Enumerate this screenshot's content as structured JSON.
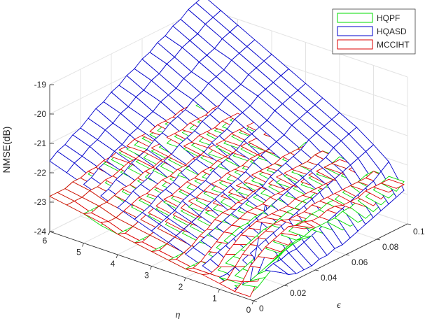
{
  "chart_data": {
    "type": "surface",
    "title": "",
    "zlabel": "NMSE(dB)",
    "xlabel": "η",
    "ylabel": "ϵ",
    "eta_ticks": [
      "0",
      "1",
      "2",
      "3",
      "4",
      "5",
      "6"
    ],
    "eps_ticks": [
      "0",
      "0.02",
      "0.04",
      "0.06",
      "0.08",
      "0.1"
    ],
    "z_ticks": [
      "-24",
      "-23",
      "-22",
      "-21",
      "-20",
      "-19"
    ],
    "eta_range": [
      0,
      6
    ],
    "eps_range": [
      0,
      0.1
    ],
    "zlim": [
      -24,
      -19
    ],
    "grid": true,
    "legend_position": "top-right",
    "eta": [
      0.1,
      0.55,
      1.0,
      1.5,
      2.0,
      2.5,
      3.0,
      3.5,
      4.0,
      4.5,
      5.0,
      5.5,
      6.0
    ],
    "eps": [
      0,
      0.005,
      0.01,
      0.015,
      0.02,
      0.025,
      0.03,
      0.035,
      0.04,
      0.045,
      0.05,
      0.055,
      0.06,
      0.065,
      0.07,
      0.075,
      0.08,
      0.085,
      0.09,
      0.095,
      0.1
    ],
    "series": [
      {
        "name": "HQPF",
        "color": "#00dd00",
        "values": [
          [
            -23.8,
            -23.7,
            -23.5,
            -23.3,
            -23.0,
            -22.8,
            -22.8,
            -22.8,
            -22.9,
            -23.0,
            -23.1,
            -23.1,
            -23.2,
            -23.2,
            -23.2,
            -23.2,
            -23.1,
            -23.0,
            -22.9,
            -22.8,
            -22.6
          ],
          [
            -23.7,
            -23.8,
            -23.8,
            -23.7,
            -23.6,
            -23.5,
            -23.4,
            -23.3,
            -23.2,
            -23.2,
            -23.1,
            -23.1,
            -23.1,
            -23.1,
            -23.0,
            -23.0,
            -22.9,
            -22.9,
            -22.8,
            -22.7,
            -22.6
          ],
          [
            -23.6,
            -23.8,
            -23.8,
            -23.7,
            -23.6,
            -23.5,
            -23.4,
            -23.3,
            -23.2,
            -23.2,
            -23.1,
            -23.1,
            -23.0,
            -23.0,
            -22.9,
            -22.9,
            -22.8,
            -22.7,
            -22.7,
            -22.6,
            -22.6
          ],
          [
            -23.7,
            -23.8,
            -23.8,
            -23.7,
            -23.6,
            -23.5,
            -23.4,
            -23.3,
            -23.2,
            -23.2,
            -23.1,
            -23.0,
            -23.0,
            -22.9,
            -22.9,
            -22.8,
            -22.8,
            -22.7,
            -22.7,
            -22.6,
            -22.6
          ],
          [
            -23.7,
            -23.7,
            -23.7,
            -23.6,
            -23.5,
            -23.4,
            -23.3,
            -23.2,
            -23.2,
            -23.1,
            -23.1,
            -23.0,
            -22.9,
            -22.9,
            -22.8,
            -22.8,
            -22.7,
            -22.7,
            -22.6,
            -22.6,
            -22.5
          ],
          [
            -23.6,
            -23.6,
            -23.6,
            -23.5,
            -23.5,
            -23.4,
            -23.3,
            -23.2,
            -23.1,
            -23.1,
            -23.0,
            -22.9,
            -22.9,
            -22.8,
            -22.8,
            -22.7,
            -22.7,
            -22.6,
            -22.6,
            -22.5,
            -22.5
          ],
          [
            -23.5,
            -23.5,
            -23.5,
            -23.4,
            -23.4,
            -23.3,
            -23.2,
            -23.1,
            -23.1,
            -23.0,
            -22.9,
            -22.9,
            -22.8,
            -22.8,
            -22.7,
            -22.7,
            -22.6,
            -22.6,
            -22.5,
            -22.5,
            -22.4
          ],
          [
            -23.4,
            -23.4,
            -23.4,
            -23.3,
            -23.3,
            -23.2,
            -23.1,
            -23.1,
            -23.0,
            -22.9,
            -22.9,
            -22.8,
            -22.8,
            -22.7,
            -22.7,
            -22.6,
            -22.6,
            -22.5,
            -22.5,
            -22.4,
            -22.4
          ],
          [
            -23.3,
            -23.3,
            -23.3,
            -23.2,
            -23.2,
            -23.1,
            -23.0,
            -23.0,
            -22.9,
            -22.9,
            -22.8,
            -22.8,
            -22.7,
            -22.7,
            -22.6,
            -22.6,
            -22.5,
            -22.5,
            -22.4,
            -22.4,
            -22.4
          ],
          [
            -23.2,
            -23.2,
            -23.2,
            -23.1,
            -23.1,
            -23.0,
            -23.0,
            -22.9,
            -22.9,
            -22.8,
            -22.8,
            -22.7,
            -22.7,
            -22.6,
            -22.6,
            -22.5,
            -22.5,
            -22.4,
            -22.4,
            -22.4,
            -22.3
          ],
          [
            -23.0,
            -23.0,
            -23.0,
            -23.0,
            -22.9,
            -22.9,
            -22.8,
            -22.8,
            -22.8,
            -22.7,
            -22.7,
            -22.6,
            -22.6,
            -22.5,
            -22.5,
            -22.5,
            -22.4,
            -22.4,
            -22.4,
            -22.3,
            -22.3
          ],
          [
            -22.9,
            -22.9,
            -22.9,
            -22.8,
            -22.8,
            -22.8,
            -22.7,
            -22.7,
            -22.7,
            -22.6,
            -22.6,
            -22.5,
            -22.5,
            -22.5,
            -22.4,
            -22.4,
            -22.4,
            -22.3,
            -22.3,
            -22.3,
            -22.2
          ],
          [
            -22.8,
            -22.8,
            -22.8,
            -22.7,
            -22.7,
            -22.7,
            -22.6,
            -22.6,
            -22.6,
            -22.5,
            -22.5,
            -22.5,
            -22.4,
            -22.4,
            -22.4,
            -22.3,
            -22.3,
            -22.3,
            -22.2,
            -22.2,
            -22.2
          ]
        ]
      },
      {
        "name": "HQASD",
        "color": "#0000cc",
        "values": [
          [
            -23.8,
            -22.4,
            -21.0,
            -22.2,
            -23.6,
            -23.8,
            -23.9,
            -23.9,
            -23.9,
            -23.8,
            -23.8,
            -23.7,
            -23.7,
            -23.6,
            -23.5,
            -23.4,
            -23.3,
            -23.2,
            -23.1,
            -23.0,
            -22.9
          ],
          [
            -23.8,
            -23.8,
            -23.8,
            -23.7,
            -23.7,
            -23.6,
            -23.6,
            -23.5,
            -23.5,
            -23.4,
            -23.3,
            -23.2,
            -23.1,
            -23.0,
            -22.9,
            -22.8,
            -22.7,
            -22.6,
            -22.5,
            -22.3,
            -22.1
          ],
          [
            -23.6,
            -23.6,
            -23.5,
            -23.4,
            -23.3,
            -23.2,
            -23.1,
            -23.0,
            -22.9,
            -22.8,
            -22.7,
            -22.6,
            -22.5,
            -22.4,
            -22.3,
            -22.2,
            -22.1,
            -22.0,
            -21.9,
            -21.8,
            -21.7
          ],
          [
            -23.4,
            -23.3,
            -23.2,
            -23.1,
            -23.0,
            -22.9,
            -22.8,
            -22.7,
            -22.6,
            -22.5,
            -22.4,
            -22.3,
            -22.2,
            -22.1,
            -22.0,
            -21.9,
            -21.8,
            -21.6,
            -21.5,
            -21.4,
            -21.3
          ],
          [
            -23.2,
            -23.1,
            -23.0,
            -22.9,
            -22.8,
            -22.7,
            -22.6,
            -22.5,
            -22.4,
            -22.3,
            -22.2,
            -22.0,
            -21.9,
            -21.8,
            -21.7,
            -21.6,
            -21.4,
            -21.3,
            -21.2,
            -21.1,
            -21.0
          ],
          [
            -23.0,
            -22.9,
            -22.8,
            -22.7,
            -22.6,
            -22.4,
            -22.3,
            -22.2,
            -22.1,
            -22.0,
            -21.9,
            -21.7,
            -21.6,
            -21.5,
            -21.4,
            -21.3,
            -21.1,
            -21.0,
            -20.9,
            -20.8,
            -20.7
          ],
          [
            -22.8,
            -22.7,
            -22.6,
            -22.5,
            -22.3,
            -22.2,
            -22.1,
            -22.0,
            -21.8,
            -21.7,
            -21.6,
            -21.5,
            -21.3,
            -21.2,
            -21.1,
            -21.0,
            -20.8,
            -20.7,
            -20.6,
            -20.5,
            -20.4
          ],
          [
            -22.6,
            -22.5,
            -22.4,
            -22.2,
            -22.1,
            -22.0,
            -21.8,
            -21.7,
            -21.6,
            -21.5,
            -21.3,
            -21.2,
            -21.1,
            -20.9,
            -20.8,
            -20.7,
            -20.5,
            -20.4,
            -20.3,
            -20.2,
            -20.1
          ],
          [
            -22.4,
            -22.3,
            -22.1,
            -22.0,
            -21.9,
            -21.7,
            -21.6,
            -21.5,
            -21.3,
            -21.2,
            -21.1,
            -20.9,
            -20.8,
            -20.7,
            -20.5,
            -20.4,
            -20.3,
            -20.1,
            -20.0,
            -19.9,
            -19.8
          ],
          [
            -22.2,
            -22.1,
            -21.9,
            -21.8,
            -21.6,
            -21.5,
            -21.4,
            -21.2,
            -21.1,
            -20.9,
            -20.8,
            -20.7,
            -20.5,
            -20.4,
            -20.2,
            -20.1,
            -20.0,
            -19.8,
            -19.7,
            -19.6,
            -19.5
          ],
          [
            -22.0,
            -21.9,
            -21.7,
            -21.6,
            -21.4,
            -21.3,
            -21.1,
            -21.0,
            -20.8,
            -20.7,
            -20.5,
            -20.4,
            -20.3,
            -20.1,
            -20.0,
            -19.8,
            -19.7,
            -19.6,
            -19.4,
            -19.3,
            -19.2
          ],
          [
            -21.8,
            -21.6,
            -21.5,
            -21.3,
            -21.2,
            -21.0,
            -20.9,
            -20.7,
            -20.6,
            -20.4,
            -20.3,
            -20.1,
            -20.0,
            -19.8,
            -19.7,
            -19.5,
            -19.4,
            -19.3,
            -19.1,
            -19.0,
            -18.9
          ],
          [
            -21.6,
            -21.4,
            -21.3,
            -21.1,
            -21.0,
            -20.8,
            -20.6,
            -20.5,
            -20.3,
            -20.2,
            -20.0,
            -19.9,
            -19.7,
            -19.6,
            -19.4,
            -19.3,
            -19.1,
            -19.0,
            -18.8,
            -18.7,
            -18.6
          ]
        ]
      },
      {
        "name": "MCCIHT",
        "color": "#dd0000",
        "values": [
          [
            -23.9,
            -23.5,
            -23.2,
            -23.0,
            -22.9,
            -22.8,
            -22.6,
            -22.5,
            -22.6,
            -22.8,
            -22.9,
            -22.8,
            -22.7,
            -22.7,
            -22.8,
            -22.8,
            -22.9,
            -22.8,
            -22.7,
            -22.7,
            -22.7
          ],
          [
            -23.9,
            -23.7,
            -23.3,
            -23.1,
            -22.9,
            -22.8,
            -22.7,
            -22.6,
            -22.7,
            -22.7,
            -22.8,
            -22.8,
            -22.7,
            -22.7,
            -22.8,
            -22.8,
            -22.8,
            -22.7,
            -22.7,
            -22.7,
            -22.7
          ],
          [
            -23.8,
            -23.8,
            -23.5,
            -23.2,
            -23.0,
            -22.9,
            -22.8,
            -22.7,
            -22.7,
            -22.8,
            -22.8,
            -22.8,
            -22.7,
            -22.7,
            -22.7,
            -22.7,
            -22.7,
            -22.7,
            -22.7,
            -22.7,
            -22.6
          ],
          [
            -23.7,
            -23.8,
            -23.7,
            -23.4,
            -23.2,
            -23.0,
            -22.9,
            -22.8,
            -22.8,
            -22.8,
            -22.8,
            -22.8,
            -22.7,
            -22.7,
            -22.7,
            -22.7,
            -22.7,
            -22.7,
            -22.6,
            -22.6,
            -22.6
          ],
          [
            -23.7,
            -23.8,
            -23.7,
            -23.5,
            -23.3,
            -23.1,
            -23.0,
            -22.9,
            -22.8,
            -22.8,
            -22.8,
            -22.7,
            -22.7,
            -22.7,
            -22.7,
            -22.7,
            -22.6,
            -22.6,
            -22.6,
            -22.6,
            -22.6
          ],
          [
            -23.6,
            -23.7,
            -23.6,
            -23.5,
            -23.3,
            -23.2,
            -23.0,
            -22.9,
            -22.9,
            -22.8,
            -22.8,
            -22.7,
            -22.7,
            -22.7,
            -22.6,
            -22.6,
            -22.6,
            -22.6,
            -22.6,
            -22.5,
            -22.5
          ],
          [
            -23.5,
            -23.6,
            -23.5,
            -23.4,
            -23.3,
            -23.2,
            -23.1,
            -23.0,
            -22.9,
            -22.8,
            -22.8,
            -22.7,
            -22.7,
            -22.6,
            -22.6,
            -22.6,
            -22.6,
            -22.5,
            -22.5,
            -22.5,
            -22.5
          ],
          [
            -23.4,
            -23.5,
            -23.4,
            -23.3,
            -23.2,
            -23.1,
            -23.0,
            -22.9,
            -22.9,
            -22.8,
            -22.7,
            -22.7,
            -22.6,
            -22.6,
            -22.6,
            -22.5,
            -22.5,
            -22.5,
            -22.5,
            -22.4,
            -22.4
          ],
          [
            -23.3,
            -23.4,
            -23.3,
            -23.2,
            -23.1,
            -23.0,
            -22.9,
            -22.9,
            -22.8,
            -22.7,
            -22.7,
            -22.6,
            -22.6,
            -22.5,
            -22.5,
            -22.5,
            -22.4,
            -22.4,
            -22.4,
            -22.4,
            -22.3
          ],
          [
            -23.1,
            -23.2,
            -23.2,
            -23.1,
            -23.0,
            -22.9,
            -22.9,
            -22.8,
            -22.7,
            -22.7,
            -22.6,
            -22.6,
            -22.5,
            -22.5,
            -22.4,
            -22.4,
            -22.4,
            -22.3,
            -22.3,
            -22.3,
            -22.3
          ],
          [
            -23.0,
            -23.1,
            -23.0,
            -23.0,
            -22.9,
            -22.8,
            -22.8,
            -22.7,
            -22.6,
            -22.6,
            -22.5,
            -22.5,
            -22.4,
            -22.4,
            -22.4,
            -22.3,
            -22.3,
            -22.3,
            -22.2,
            -22.2,
            -22.2
          ],
          [
            -22.9,
            -22.9,
            -22.9,
            -22.8,
            -22.8,
            -22.7,
            -22.7,
            -22.6,
            -22.5,
            -22.5,
            -22.4,
            -22.4,
            -22.4,
            -22.3,
            -22.3,
            -22.3,
            -22.2,
            -22.2,
            -22.2,
            -22.1,
            -22.1
          ],
          [
            -22.8,
            -22.8,
            -22.8,
            -22.7,
            -22.7,
            -22.6,
            -22.6,
            -22.5,
            -22.5,
            -22.4,
            -22.4,
            -22.3,
            -22.3,
            -22.3,
            -22.2,
            -22.2,
            -22.2,
            -22.1,
            -22.1,
            -22.1,
            -22.1
          ]
        ]
      }
    ]
  }
}
